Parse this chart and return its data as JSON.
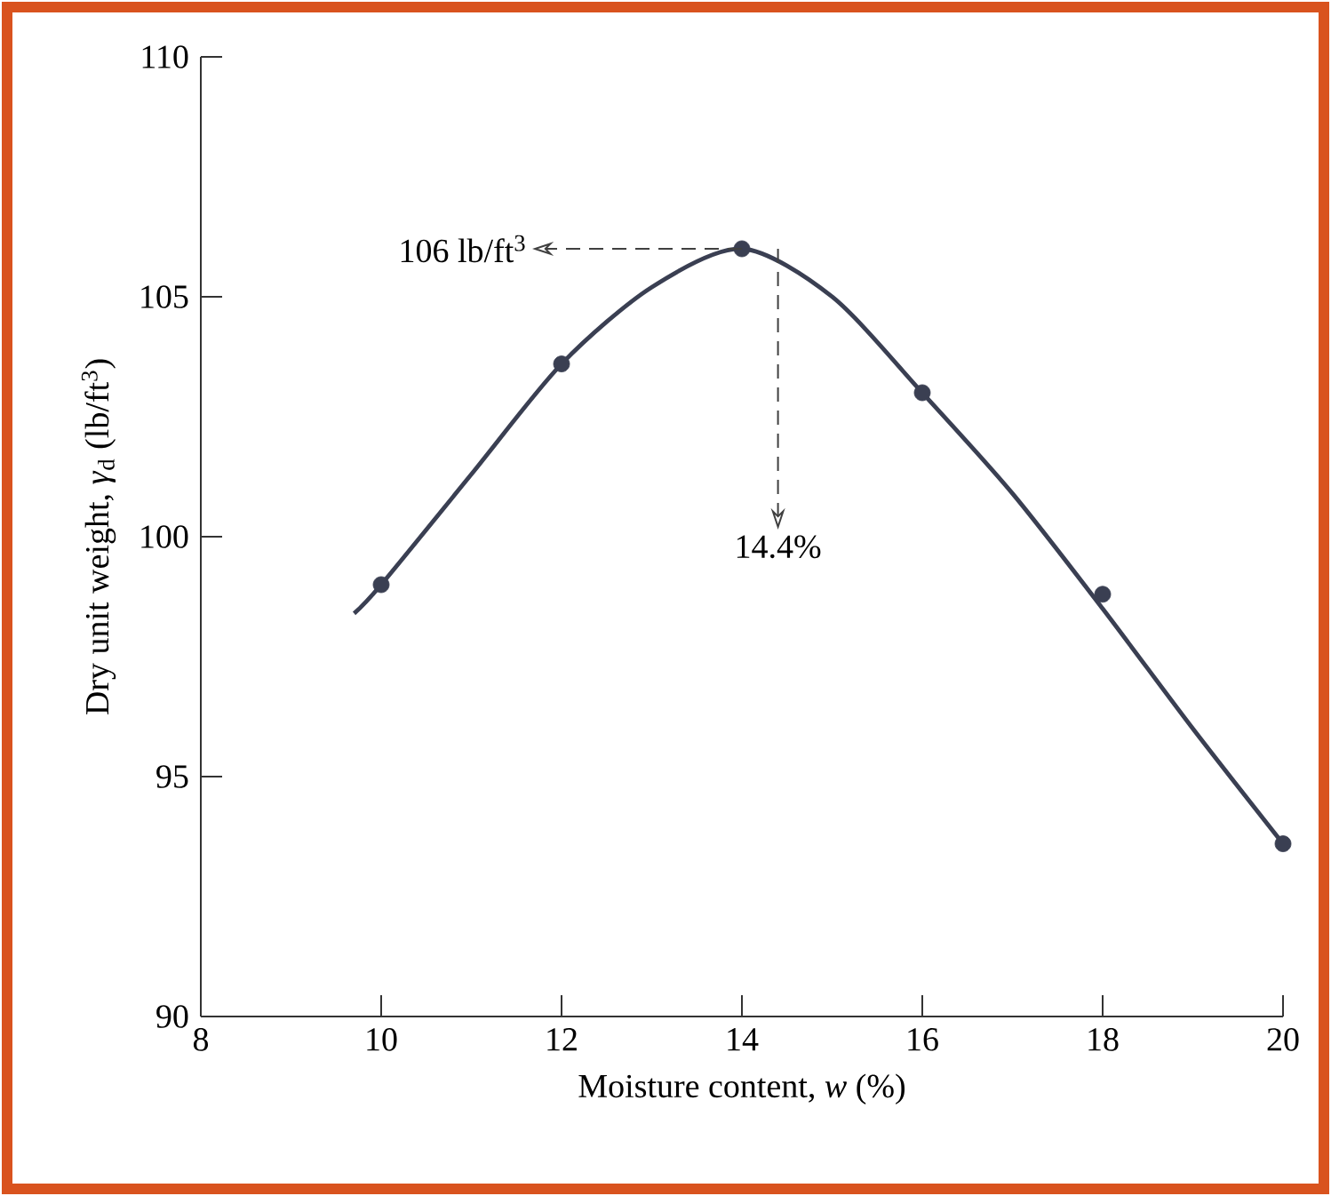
{
  "chart_data": {
    "type": "scatter",
    "xlabel": "Moisture content, *w* (%)",
    "ylabel": "Dry unit weight, *γ*$_{d}$ (lb/ft$^{3}$)",
    "x": [
      10,
      12,
      14,
      16,
      18,
      20
    ],
    "series": [
      {
        "color": "#3a3f52",
        "marker": "circle",
        "values": [
          99.0,
          103.6,
          106.0,
          103.0,
          98.8,
          93.6
        ]
      },
      {
        "type": "line",
        "color": "#3a3f52",
        "marker": "none",
        "line_style": "solid",
        "x": [
          9.7,
          10,
          11,
          12,
          13,
          14,
          15,
          16,
          17,
          18,
          19,
          20
        ],
        "values": [
          98.4,
          99.0,
          101.3,
          103.6,
          105.2,
          106.0,
          105.0,
          103.0,
          100.9,
          98.5,
          96.0,
          93.6
        ]
      }
    ],
    "xlim": [
      8,
      20
    ],
    "xticks": [
      8,
      10,
      12,
      14,
      16,
      18,
      20
    ],
    "ylim": [
      90,
      110
    ],
    "yticks": [
      90,
      95,
      100,
      105,
      110
    ],
    "grid": false,
    "annotations": [
      {
        "text": "106 lb/ft$^{3}$",
        "x": 14,
        "y": 106
      },
      {
        "text": "14.4%",
        "x": 14.4,
        "y": 106
      }
    ]
  }
}
